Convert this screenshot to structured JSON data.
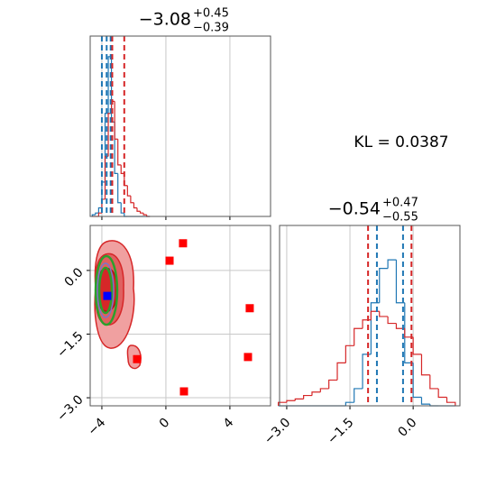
{
  "chart_data": [
    {
      "type": "histogram",
      "title": "−3.08",
      "title_sup": "+0.45",
      "title_sub": "−0.39",
      "bins": [
        -4.6,
        -4.4,
        -4.2,
        -4.0,
        -3.8,
        -3.6,
        -3.4,
        -3.2,
        -3.0,
        -2.8,
        -2.6,
        -2.4,
        -2.2,
        -2.0,
        -1.8,
        -1.6,
        -1.4,
        -1.2,
        -1.0
      ],
      "series": [
        {
          "color": "#1f77b4",
          "values": [
            0.01,
            0.02,
            0.05,
            0.2,
            0.6,
            0.93,
            0.55,
            0.25,
            0.08,
            0.02,
            0,
            0,
            0,
            0,
            0,
            0,
            0,
            0
          ]
        },
        {
          "color": "#d62728",
          "values": [
            0,
            0,
            0.02,
            0.1,
            0.35,
            0.6,
            0.67,
            0.45,
            0.3,
            0.25,
            0.18,
            0.12,
            0.08,
            0.05,
            0.03,
            0.02,
            0.01,
            0
          ]
        }
      ],
      "quantiles": [
        {
          "color": "#1f77b4",
          "values": [
            -4.0,
            -3.7,
            -3.45
          ]
        },
        {
          "color": "#d62728",
          "values": [
            -3.35,
            -2.6
          ]
        }
      ],
      "xlim": [
        -4.73,
        6.54
      ],
      "ylim": [
        0,
        1.05
      ],
      "xticks": [
        -4,
        0,
        4
      ],
      "grid": true
    },
    {
      "type": "scatter",
      "series": [
        {
          "color": "#ff0000",
          "x": [
            1.07,
            0.23,
            5.24,
            5.13,
            -1.8,
            1.13
          ],
          "y": [
            0.64,
            0.23,
            -0.89,
            -2.04,
            -2.09,
            -2.85
          ]
        },
        {
          "color": "#0000ff",
          "x": [
            -3.66
          ],
          "y": [
            -0.6
          ]
        }
      ],
      "xlim": [
        -4.73,
        6.54
      ],
      "ylim": [
        -3.19,
        1.06
      ],
      "xticks": [
        {
          "value": -4,
          "label": "−4"
        },
        0,
        4
      ],
      "yticks": [
        {
          "value": 0,
          "label": "0.0"
        },
        {
          "value": -1.5,
          "label": "−1.5"
        },
        {
          "value": -3.0,
          "label": "−3.0"
        }
      ],
      "grid": true
    },
    {
      "type": "histogram",
      "title": "−0.54",
      "title_sup": "+0.47",
      "title_sub": "−0.55",
      "bins": [
        -3.2,
        -3.0,
        -2.8,
        -2.6,
        -2.4,
        -2.2,
        -2.0,
        -1.8,
        -1.6,
        -1.4,
        -1.2,
        -1.0,
        -0.8,
        -0.6,
        -0.4,
        -0.2,
        0.0,
        0.2,
        0.4,
        0.6,
        0.8,
        1.0
      ],
      "series": [
        {
          "color": "#1f77b4",
          "values": [
            0,
            0,
            0,
            0,
            0,
            0,
            0,
            0,
            0.02,
            0.1,
            0.3,
            0.6,
            0.8,
            0.85,
            0.6,
            0.25,
            0.05,
            0.01,
            0,
            0,
            0
          ]
        },
        {
          "color": "#d62728",
          "values": [
            0.02,
            0.03,
            0.04,
            0.06,
            0.08,
            0.1,
            0.15,
            0.25,
            0.35,
            0.45,
            0.5,
            0.55,
            0.52,
            0.48,
            0.45,
            0.4,
            0.3,
            0.18,
            0.1,
            0.05,
            0.02
          ]
        }
      ],
      "quantiles": [
        {
          "color": "#d62728",
          "values": [
            -1.07,
            -0.04
          ]
        },
        {
          "color": "#1f77b4",
          "values": [
            -0.86,
            -0.24
          ]
        }
      ],
      "xlim": [
        -3.17,
        1.11
      ],
      "ylim": [
        0,
        1.05
      ],
      "xticks": [
        {
          "value": -3.0,
          "label": "−3.0"
        },
        {
          "value": -1.5,
          "label": "−1.5"
        },
        {
          "value": 0.0,
          "label": "0.0"
        }
      ],
      "grid": true
    },
    {
      "type": "annotation",
      "text": "KL = 0.0387"
    }
  ]
}
